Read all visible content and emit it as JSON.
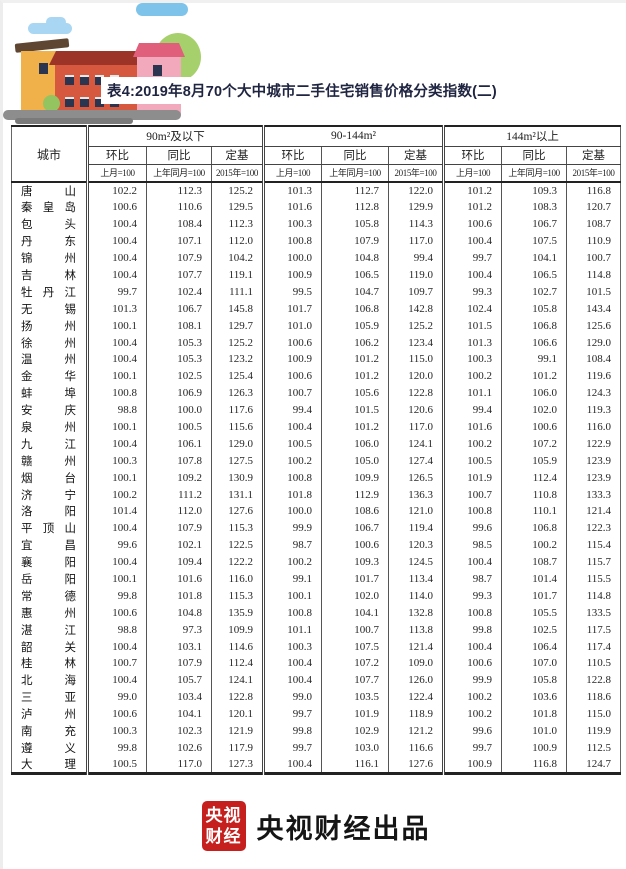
{
  "chart_data": {
    "type": "table",
    "title": "表4:2019年8月70个大中城市二手住宅销售价格分类指数(二)",
    "city_header": "城市",
    "column_groups": [
      "90m²及以下",
      "90-144m²",
      "144m²以上"
    ],
    "metrics": [
      "环比",
      "同比",
      "定基"
    ],
    "bases": [
      "上月=100",
      "上年同月=100",
      "2015年=100"
    ],
    "rows": [
      {
        "city": "唐山",
        "values": [
          "102.2",
          "112.3",
          "125.2",
          "101.3",
          "112.7",
          "122.0",
          "101.2",
          "109.3",
          "116.8"
        ]
      },
      {
        "city": "秦皇岛",
        "values": [
          "100.6",
          "110.6",
          "129.5",
          "101.6",
          "112.8",
          "129.9",
          "101.2",
          "108.3",
          "120.7"
        ]
      },
      {
        "city": "包头",
        "values": [
          "100.4",
          "108.4",
          "112.3",
          "100.3",
          "105.8",
          "114.3",
          "100.6",
          "106.7",
          "108.7"
        ]
      },
      {
        "city": "丹东",
        "values": [
          "100.4",
          "107.1",
          "112.0",
          "100.8",
          "107.9",
          "117.0",
          "100.4",
          "107.5",
          "110.9"
        ]
      },
      {
        "city": "锦州",
        "values": [
          "100.4",
          "107.9",
          "104.2",
          "100.0",
          "104.8",
          "99.4",
          "99.7",
          "104.1",
          "100.7"
        ]
      },
      {
        "city": "吉林",
        "values": [
          "100.4",
          "107.7",
          "119.1",
          "100.9",
          "106.5",
          "119.0",
          "100.4",
          "106.5",
          "114.8"
        ]
      },
      {
        "city": "牡丹江",
        "values": [
          "99.7",
          "102.4",
          "111.1",
          "99.5",
          "104.7",
          "109.7",
          "99.3",
          "102.7",
          "101.5"
        ]
      },
      {
        "city": "无锡",
        "values": [
          "101.3",
          "106.7",
          "145.8",
          "101.7",
          "106.8",
          "142.8",
          "102.4",
          "105.8",
          "143.4"
        ]
      },
      {
        "city": "扬州",
        "values": [
          "100.1",
          "108.1",
          "129.7",
          "101.0",
          "105.9",
          "125.2",
          "101.5",
          "106.8",
          "125.6"
        ]
      },
      {
        "city": "徐州",
        "values": [
          "100.4",
          "105.3",
          "125.2",
          "100.6",
          "106.2",
          "123.4",
          "101.3",
          "106.6",
          "129.0"
        ]
      },
      {
        "city": "温州",
        "values": [
          "100.4",
          "105.3",
          "123.2",
          "100.9",
          "101.2",
          "115.0",
          "100.3",
          "99.1",
          "108.4"
        ]
      },
      {
        "city": "金华",
        "values": [
          "100.1",
          "102.5",
          "125.4",
          "100.6",
          "101.2",
          "120.0",
          "100.2",
          "101.2",
          "119.6"
        ]
      },
      {
        "city": "蚌埠",
        "values": [
          "100.8",
          "106.9",
          "126.3",
          "100.7",
          "105.6",
          "122.8",
          "101.1",
          "106.0",
          "124.3"
        ]
      },
      {
        "city": "安庆",
        "values": [
          "98.8",
          "100.0",
          "117.6",
          "99.4",
          "101.5",
          "120.6",
          "99.4",
          "102.0",
          "119.3"
        ]
      },
      {
        "city": "泉州",
        "values": [
          "100.1",
          "100.5",
          "115.6",
          "100.4",
          "101.2",
          "117.0",
          "101.6",
          "100.6",
          "116.0"
        ]
      },
      {
        "city": "九江",
        "values": [
          "100.4",
          "106.1",
          "129.0",
          "100.5",
          "106.0",
          "124.1",
          "100.2",
          "107.2",
          "122.9"
        ]
      },
      {
        "city": "赣州",
        "values": [
          "100.3",
          "107.8",
          "127.5",
          "100.2",
          "105.0",
          "127.4",
          "100.5",
          "105.9",
          "123.9"
        ]
      },
      {
        "city": "烟台",
        "values": [
          "100.1",
          "109.2",
          "130.9",
          "100.8",
          "109.9",
          "126.5",
          "101.9",
          "112.4",
          "123.9"
        ]
      },
      {
        "city": "济宁",
        "values": [
          "100.2",
          "111.2",
          "131.1",
          "101.8",
          "112.9",
          "136.3",
          "100.7",
          "110.8",
          "133.3"
        ]
      },
      {
        "city": "洛阳",
        "values": [
          "101.4",
          "112.0",
          "127.6",
          "100.0",
          "108.6",
          "121.0",
          "100.8",
          "110.1",
          "121.4"
        ]
      },
      {
        "city": "平顶山",
        "values": [
          "100.4",
          "107.9",
          "115.3",
          "99.9",
          "106.7",
          "119.4",
          "99.6",
          "106.8",
          "122.3"
        ]
      },
      {
        "city": "宜昌",
        "values": [
          "99.6",
          "102.1",
          "122.5",
          "98.7",
          "100.6",
          "120.3",
          "98.5",
          "100.2",
          "115.4"
        ]
      },
      {
        "city": "襄阳",
        "values": [
          "100.4",
          "109.4",
          "122.2",
          "100.2",
          "109.3",
          "124.5",
          "100.4",
          "108.7",
          "115.7"
        ]
      },
      {
        "city": "岳阳",
        "values": [
          "100.1",
          "101.6",
          "116.0",
          "99.1",
          "101.7",
          "113.4",
          "98.7",
          "101.4",
          "115.5"
        ]
      },
      {
        "city": "常德",
        "values": [
          "99.8",
          "101.8",
          "115.3",
          "100.1",
          "102.0",
          "114.0",
          "99.3",
          "101.7",
          "114.8"
        ]
      },
      {
        "city": "惠州",
        "values": [
          "100.6",
          "104.8",
          "135.9",
          "100.8",
          "104.1",
          "132.8",
          "100.8",
          "105.5",
          "133.5"
        ]
      },
      {
        "city": "湛江",
        "values": [
          "98.8",
          "97.3",
          "109.9",
          "101.1",
          "100.7",
          "113.8",
          "99.8",
          "102.5",
          "117.5"
        ]
      },
      {
        "city": "韶关",
        "values": [
          "100.4",
          "103.1",
          "114.6",
          "100.3",
          "107.5",
          "121.4",
          "100.4",
          "106.4",
          "117.4"
        ]
      },
      {
        "city": "桂林",
        "values": [
          "100.7",
          "107.9",
          "112.4",
          "100.4",
          "107.2",
          "109.0",
          "100.6",
          "107.0",
          "110.5"
        ]
      },
      {
        "city": "北海",
        "values": [
          "100.4",
          "105.7",
          "124.1",
          "100.4",
          "107.7",
          "126.0",
          "99.9",
          "105.8",
          "122.8"
        ]
      },
      {
        "city": "三亚",
        "values": [
          "99.0",
          "103.4",
          "122.8",
          "99.0",
          "103.5",
          "122.4",
          "100.2",
          "103.6",
          "118.6"
        ]
      },
      {
        "city": "泸州",
        "values": [
          "100.6",
          "104.1",
          "120.1",
          "99.7",
          "101.9",
          "118.9",
          "100.2",
          "101.8",
          "115.0"
        ]
      },
      {
        "city": "南充",
        "values": [
          "100.3",
          "102.3",
          "121.9",
          "99.8",
          "102.9",
          "121.2",
          "99.6",
          "101.0",
          "119.9"
        ]
      },
      {
        "city": "遵义",
        "values": [
          "99.8",
          "102.6",
          "117.9",
          "99.7",
          "103.0",
          "116.6",
          "99.7",
          "100.9",
          "112.5"
        ]
      },
      {
        "city": "大理",
        "values": [
          "100.5",
          "117.0",
          "127.3",
          "100.4",
          "116.1",
          "127.6",
          "100.9",
          "116.8",
          "124.7"
        ]
      }
    ]
  },
  "footer": {
    "logo_line1": "央视",
    "logo_line2": "财经",
    "text": "央视财经出品",
    "logo_color": "#c5201d"
  },
  "colors": {
    "title_text": "#1f2440",
    "logo_red": "#c5201d"
  }
}
